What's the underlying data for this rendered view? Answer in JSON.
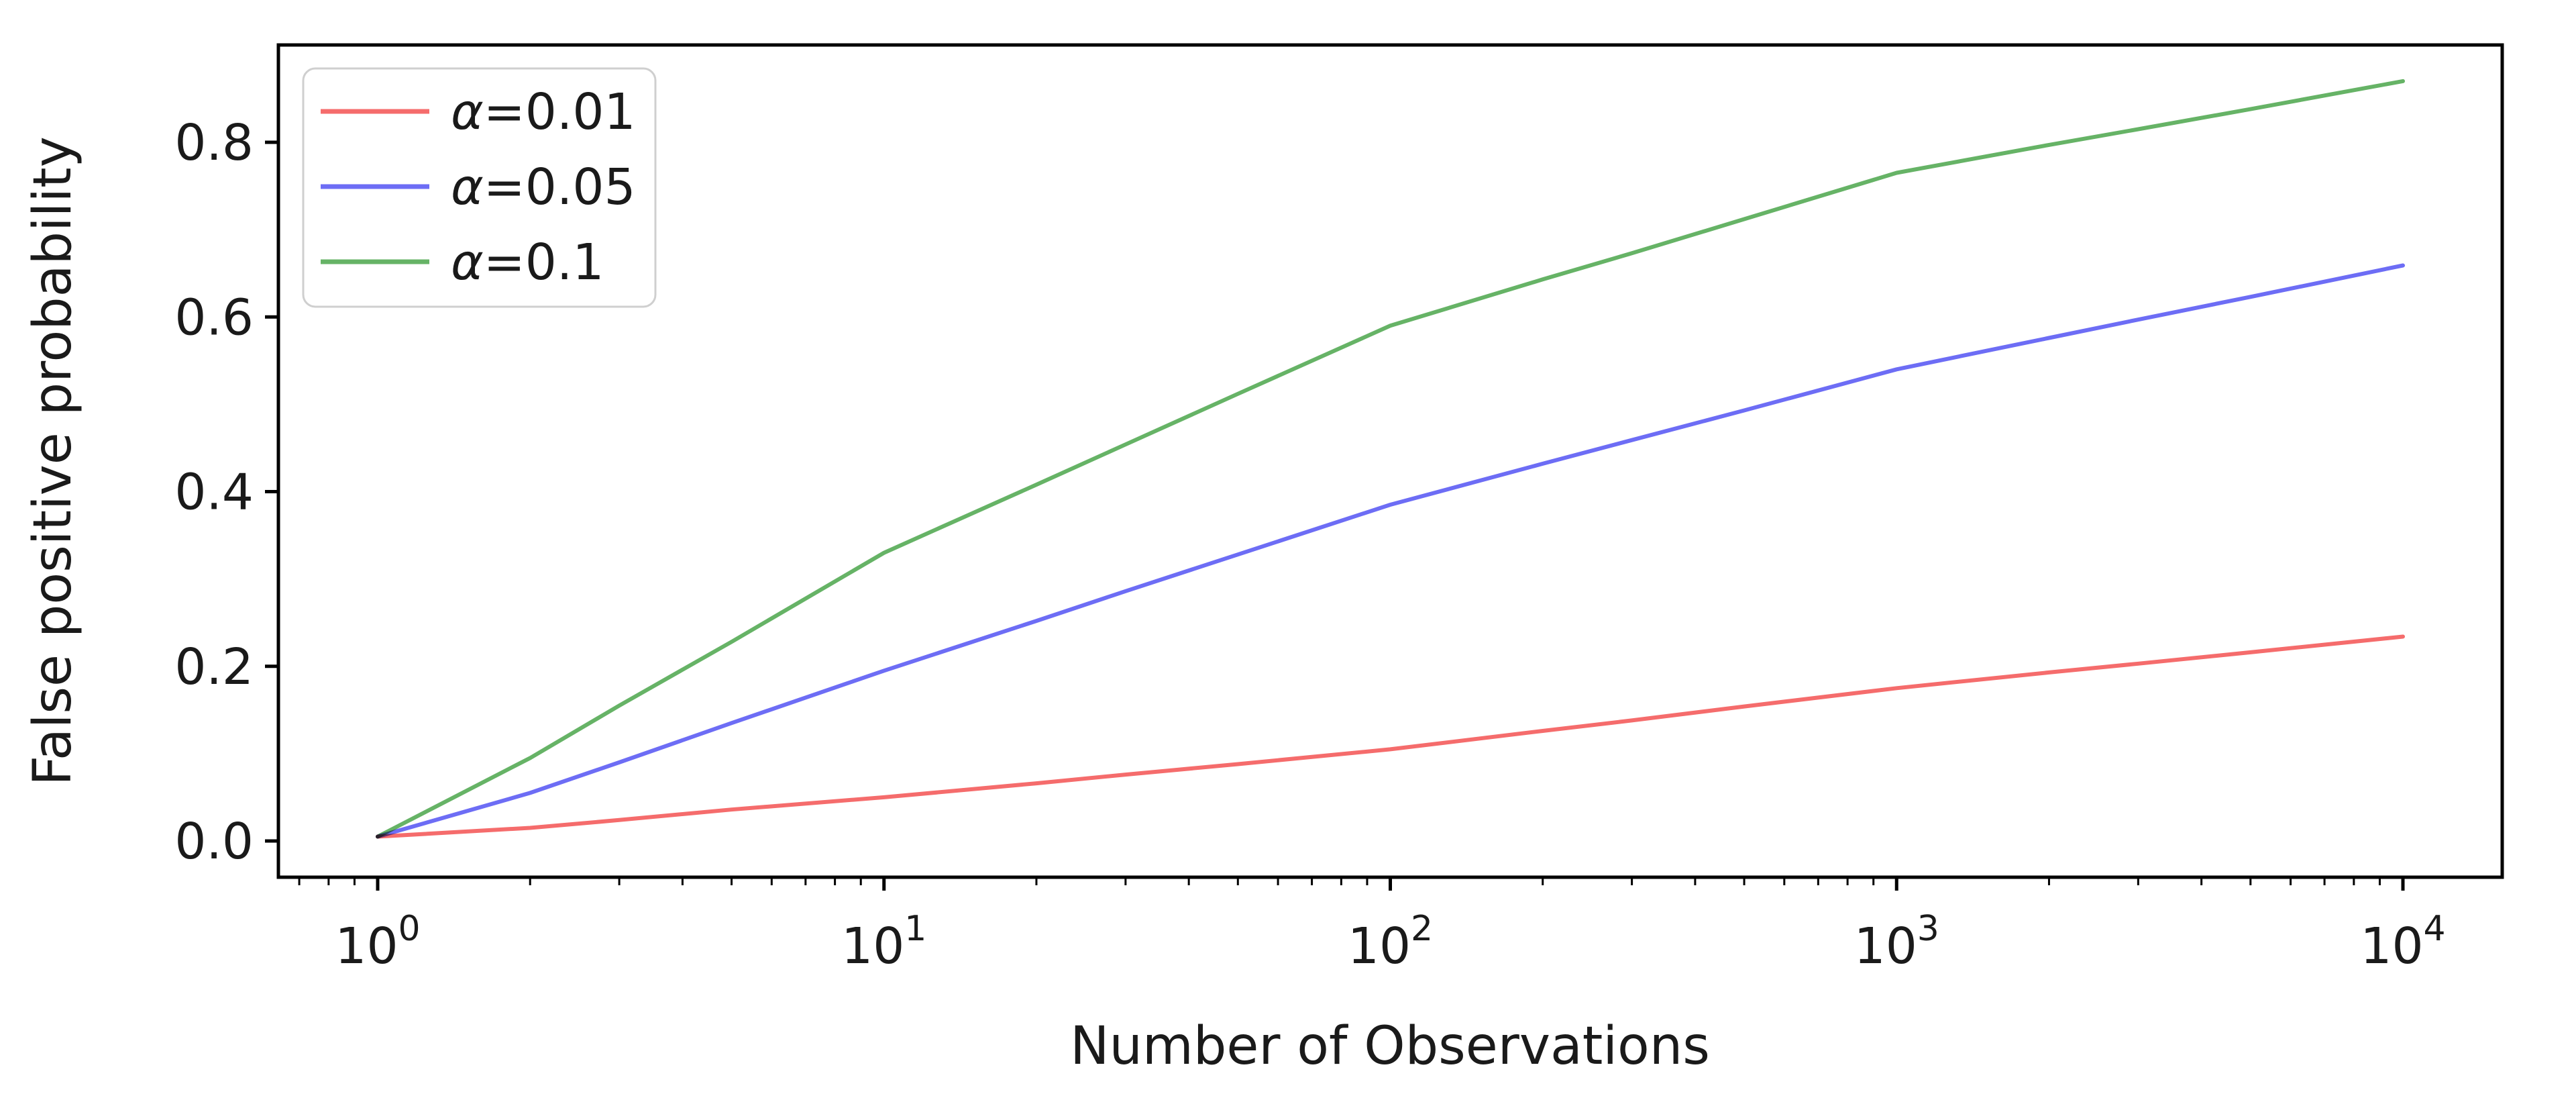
{
  "figure": {
    "background": "#ffffff",
    "spine_color": "#000000",
    "text_color": "#1a1a1a"
  },
  "chart_data": {
    "type": "line",
    "title": "",
    "xlabel": "Number of Observations",
    "ylabel": "False positive probability",
    "x_scale": "log",
    "grid": false,
    "xlim": [
      0.63,
      15800
    ],
    "ylim": [
      -0.04,
      0.91
    ],
    "x_tick_base": "10",
    "x_tick_exponents": [
      "0",
      "1",
      "2",
      "3",
      "4"
    ],
    "x_tick_values": [
      1,
      10,
      100,
      1000,
      10000
    ],
    "y_ticks": [
      0.0,
      0.2,
      0.4,
      0.6,
      0.8
    ],
    "y_tick_labels": [
      "0.0",
      "0.2",
      "0.4",
      "0.6",
      "0.8"
    ],
    "x": [
      1,
      2,
      3,
      5,
      10,
      20,
      30,
      50,
      100,
      200,
      300,
      500,
      1000,
      2000,
      3000,
      5000,
      10000
    ],
    "series": [
      {
        "name": "α=0.01",
        "color": "#f56c6c",
        "values": [
          0.005,
          0.015,
          0.024,
          0.036,
          0.05,
          0.066,
          0.076,
          0.088,
          0.105,
          0.126,
          0.138,
          0.154,
          0.175,
          0.193,
          0.203,
          0.216,
          0.234
        ]
      },
      {
        "name": "α=0.05",
        "color": "#6d6df5",
        "values": [
          0.005,
          0.055,
          0.09,
          0.135,
          0.195,
          0.252,
          0.286,
          0.328,
          0.385,
          0.432,
          0.459,
          0.493,
          0.54,
          0.576,
          0.597,
          0.623,
          0.659
        ]
      },
      {
        "name": "α=0.1",
        "color": "#66b366",
        "values": [
          0.005,
          0.095,
          0.155,
          0.228,
          0.33,
          0.408,
          0.454,
          0.512,
          0.59,
          0.643,
          0.673,
          0.712,
          0.765,
          0.797,
          0.815,
          0.838,
          0.87
        ]
      }
    ],
    "legend": {
      "position": "upper left",
      "border_color": "#cfcfcf",
      "entries": [
        "α=0.01",
        "α=0.05",
        "α=0.1"
      ]
    }
  }
}
